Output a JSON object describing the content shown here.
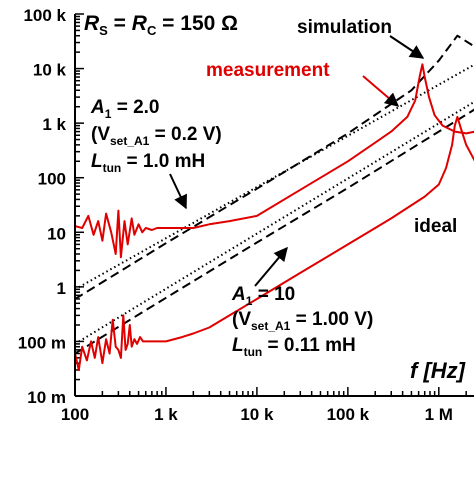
{
  "chart_data": {
    "type": "line",
    "x_scale": "log",
    "y_scale": "log",
    "xlim": [
      100,
      2500000
    ],
    "ylim": [
      0.01,
      100000
    ],
    "x_ticks": [
      {
        "value": 100,
        "label": "100"
      },
      {
        "value": 1000,
        "label": "1 k"
      },
      {
        "value": 10000,
        "label": "10 k"
      },
      {
        "value": 100000,
        "label": "100 k"
      },
      {
        "value": 1000000,
        "label": "1 M"
      }
    ],
    "y_ticks": [
      {
        "value": 100000,
        "label": "100 k"
      },
      {
        "value": 10000,
        "label": "10 k"
      },
      {
        "value": 1000,
        "label": "1 k"
      },
      {
        "value": 100,
        "label": "100"
      },
      {
        "value": 10,
        "label": "10"
      },
      {
        "value": 1,
        "label": "1"
      },
      {
        "value": 0.1,
        "label": "100 m"
      },
      {
        "value": 0.01,
        "label": "10 m"
      }
    ],
    "xlabel": "f [Hz]",
    "header": {
      "r": "R",
      "rs_sub": "S",
      "eq": " = ",
      "rc_sub": "C",
      "value": " = 150 Ω"
    },
    "label_simulation": "simulation",
    "label_measurement": "measurement",
    "label_ideal": "ideal",
    "annot1": {
      "a": "A",
      "a_sub": "1",
      "a_val": " = 2.0",
      "v_open": "(V",
      "v_sub": "set_A1",
      "v_val": " =  0.2 V)",
      "l": "L",
      "l_sub": "tun",
      "l_val": " = 1.0 mH"
    },
    "annot2": {
      "a": "A",
      "a_sub": "1",
      "a_val": " = 10",
      "v_open": "(V",
      "v_sub": "set_A1",
      "v_val": " =  1.00 V)",
      "l": "L",
      "l_sub": "tun",
      "l_val": " = 0.11 mH"
    },
    "series": [
      {
        "role": "ideal",
        "style": "dotted",
        "color": "#000000",
        "x": [
          100,
          2500000
        ],
        "y": [
          0.9,
          12000
        ]
      },
      {
        "role": "ideal",
        "style": "dotted",
        "color": "#000000",
        "x": [
          100,
          2500000
        ],
        "y": [
          0.09,
          2500
        ]
      },
      {
        "role": "simulation",
        "style": "dashed",
        "color": "#000000",
        "x": [
          100,
          1000,
          10000,
          100000,
          500000,
          1000000,
          1600000,
          2500000
        ],
        "y": [
          0.6,
          6.3,
          63,
          650,
          4000,
          14000,
          40000,
          25000
        ]
      },
      {
        "role": "simulation",
        "style": "dashed",
        "color": "#000000",
        "x": [
          100,
          1000,
          10000,
          100000,
          1000000,
          2500000
        ],
        "y": [
          0.06,
          0.63,
          6.5,
          65,
          700,
          1800
        ]
      },
      {
        "role": "measurement",
        "style": "solid",
        "color": "#e00000",
        "x": [
          100,
          120,
          140,
          160,
          180,
          200,
          220,
          250,
          280,
          300,
          320,
          350,
          380,
          420,
          450,
          500,
          550,
          600,
          700,
          800,
          1000,
          1300,
          1600,
          2000,
          3000,
          5000,
          10000,
          30000,
          100000,
          300000,
          450000,
          550000,
          620000,
          660000,
          700000,
          780000,
          900000,
          1100000,
          1500000,
          2000000,
          2500000
        ],
        "y": [
          13,
          12,
          20,
          9,
          16,
          7,
          22,
          10,
          4,
          25,
          3.5,
          16,
          6,
          18,
          9,
          14,
          10,
          12,
          11,
          12,
          12,
          12,
          12,
          12,
          14,
          16,
          20,
          60,
          200,
          700,
          1300,
          2600,
          7500,
          12000,
          7000,
          3000,
          1400,
          900,
          700,
          650,
          700
        ]
      },
      {
        "role": "measurement",
        "style": "solid",
        "color": "#e00000",
        "x": [
          100,
          110,
          120,
          135,
          150,
          165,
          180,
          200,
          220,
          240,
          260,
          280,
          300,
          320,
          340,
          360,
          380,
          400,
          420,
          450,
          480,
          520,
          560,
          600,
          700,
          800,
          1000,
          1500,
          2000,
          3000,
          5000,
          10000,
          30000,
          100000,
          300000,
          700000,
          1000000,
          1200000,
          1400000,
          1500000,
          1600000,
          1750000,
          2000000,
          2500000
        ],
        "y": [
          0.06,
          0.03,
          0.08,
          0.045,
          0.1,
          0.05,
          0.12,
          0.04,
          0.11,
          0.06,
          0.25,
          0.08,
          0.07,
          0.05,
          0.3,
          0.07,
          0.09,
          0.2,
          0.08,
          0.11,
          0.09,
          0.12,
          0.1,
          0.1,
          0.1,
          0.1,
          0.1,
          0.12,
          0.14,
          0.18,
          0.3,
          0.6,
          1.8,
          6,
          18,
          45,
          75,
          150,
          400,
          900,
          1300,
          800,
          400,
          200
        ]
      }
    ]
  }
}
